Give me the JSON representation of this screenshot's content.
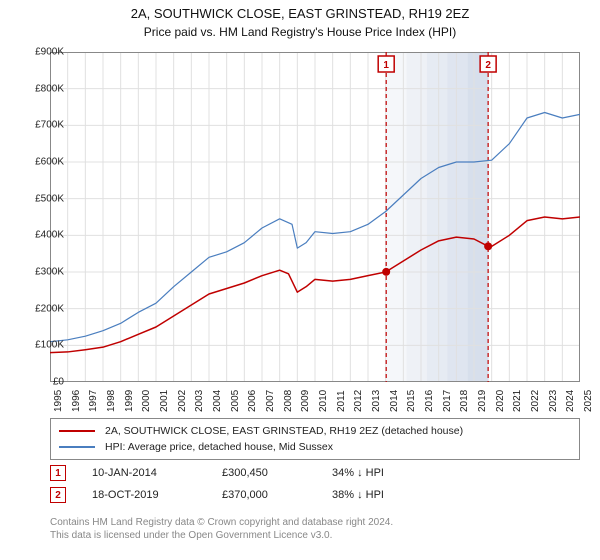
{
  "title": {
    "line1": "2A, SOUTHWICK CLOSE, EAST GRINSTEAD, RH19 2EZ",
    "line2": "Price paid vs. HM Land Registry's House Price Index (HPI)"
  },
  "chart": {
    "type": "line",
    "background_color": "#ffffff",
    "grid_color": "#e0e0e0",
    "axis_color": "#333333",
    "font_size_axis": 10,
    "ylim": [
      0,
      900000
    ],
    "ytick_step": 100000,
    "ylabels": [
      "£0",
      "£100K",
      "£200K",
      "£300K",
      "£400K",
      "£500K",
      "£600K",
      "£700K",
      "£800K",
      "£900K"
    ],
    "xlim": [
      1995,
      2025
    ],
    "xticks": [
      1995,
      1996,
      1997,
      1998,
      1999,
      2000,
      2001,
      2002,
      2003,
      2004,
      2005,
      2006,
      2007,
      2008,
      2009,
      2010,
      2011,
      2012,
      2013,
      2014,
      2015,
      2016,
      2017,
      2018,
      2019,
      2020,
      2021,
      2022,
      2023,
      2024,
      2025
    ],
    "series": [
      {
        "name": "price_paid",
        "label": "2A, SOUTHWICK CLOSE, EAST GRINSTEAD, RH19 2EZ (detached house)",
        "color": "#c00000",
        "line_width": 1.5,
        "data": [
          [
            1995,
            80000
          ],
          [
            1996,
            82000
          ],
          [
            1997,
            88000
          ],
          [
            1998,
            95000
          ],
          [
            1999,
            110000
          ],
          [
            2000,
            130000
          ],
          [
            2001,
            150000
          ],
          [
            2002,
            180000
          ],
          [
            2003,
            210000
          ],
          [
            2004,
            240000
          ],
          [
            2005,
            255000
          ],
          [
            2006,
            270000
          ],
          [
            2007,
            290000
          ],
          [
            2008,
            305000
          ],
          [
            2008.5,
            295000
          ],
          [
            2009,
            245000
          ],
          [
            2009.5,
            260000
          ],
          [
            2010,
            280000
          ],
          [
            2011,
            275000
          ],
          [
            2012,
            280000
          ],
          [
            2013,
            290000
          ],
          [
            2014,
            300000
          ],
          [
            2015,
            330000
          ],
          [
            2016,
            360000
          ],
          [
            2017,
            385000
          ],
          [
            2018,
            395000
          ],
          [
            2019,
            390000
          ],
          [
            2019.8,
            370000
          ],
          [
            2020,
            370000
          ],
          [
            2021,
            400000
          ],
          [
            2022,
            440000
          ],
          [
            2023,
            450000
          ],
          [
            2024,
            445000
          ],
          [
            2025,
            450000
          ]
        ]
      },
      {
        "name": "hpi",
        "label": "HPI: Average price, detached house, Mid Sussex",
        "color": "#4a7ebf",
        "line_width": 1.2,
        "data": [
          [
            1995,
            110000
          ],
          [
            1996,
            115000
          ],
          [
            1997,
            125000
          ],
          [
            1998,
            140000
          ],
          [
            1999,
            160000
          ],
          [
            2000,
            190000
          ],
          [
            2001,
            215000
          ],
          [
            2002,
            260000
          ],
          [
            2003,
            300000
          ],
          [
            2004,
            340000
          ],
          [
            2005,
            355000
          ],
          [
            2006,
            380000
          ],
          [
            2007,
            420000
          ],
          [
            2008,
            445000
          ],
          [
            2008.7,
            430000
          ],
          [
            2009,
            365000
          ],
          [
            2009.5,
            380000
          ],
          [
            2010,
            410000
          ],
          [
            2011,
            405000
          ],
          [
            2012,
            410000
          ],
          [
            2013,
            430000
          ],
          [
            2014,
            465000
          ],
          [
            2015,
            510000
          ],
          [
            2016,
            555000
          ],
          [
            2017,
            585000
          ],
          [
            2018,
            600000
          ],
          [
            2019,
            600000
          ],
          [
            2020,
            605000
          ],
          [
            2021,
            650000
          ],
          [
            2022,
            720000
          ],
          [
            2023,
            735000
          ],
          [
            2024,
            720000
          ],
          [
            2025,
            730000
          ]
        ]
      }
    ],
    "markers": [
      {
        "n": "1",
        "x": 2014.03,
        "y": 300450,
        "date": "10-JAN-2014",
        "price": "£300,450",
        "delta": "34% ↓ HPI",
        "color": "#c00000",
        "dot_color": "#c00000",
        "line_color": "#c00000"
      },
      {
        "n": "2",
        "x": 2019.8,
        "y": 370000,
        "date": "18-OCT-2019",
        "price": "£370,000",
        "delta": "38% ↓ HPI",
        "color": "#c00000",
        "dot_color": "#c00000",
        "line_color": "#c00000"
      }
    ],
    "shade_band": {
      "x_start": 2014.03,
      "x_end": 2019.8,
      "colors": [
        "#f5f7fa",
        "#eef1f6",
        "#e6ebf3",
        "#dfe5f0",
        "#d7dfec"
      ]
    }
  },
  "legend": {
    "items": [
      {
        "color": "#c00000",
        "label": "2A, SOUTHWICK CLOSE, EAST GRINSTEAD, RH19 2EZ (detached house)"
      },
      {
        "color": "#4a7ebf",
        "label": "HPI: Average price, detached house, Mid Sussex"
      }
    ]
  },
  "footnote": {
    "line1": "Contains HM Land Registry data © Crown copyright and database right 2024.",
    "line2": "This data is licensed under the Open Government Licence v3.0."
  }
}
